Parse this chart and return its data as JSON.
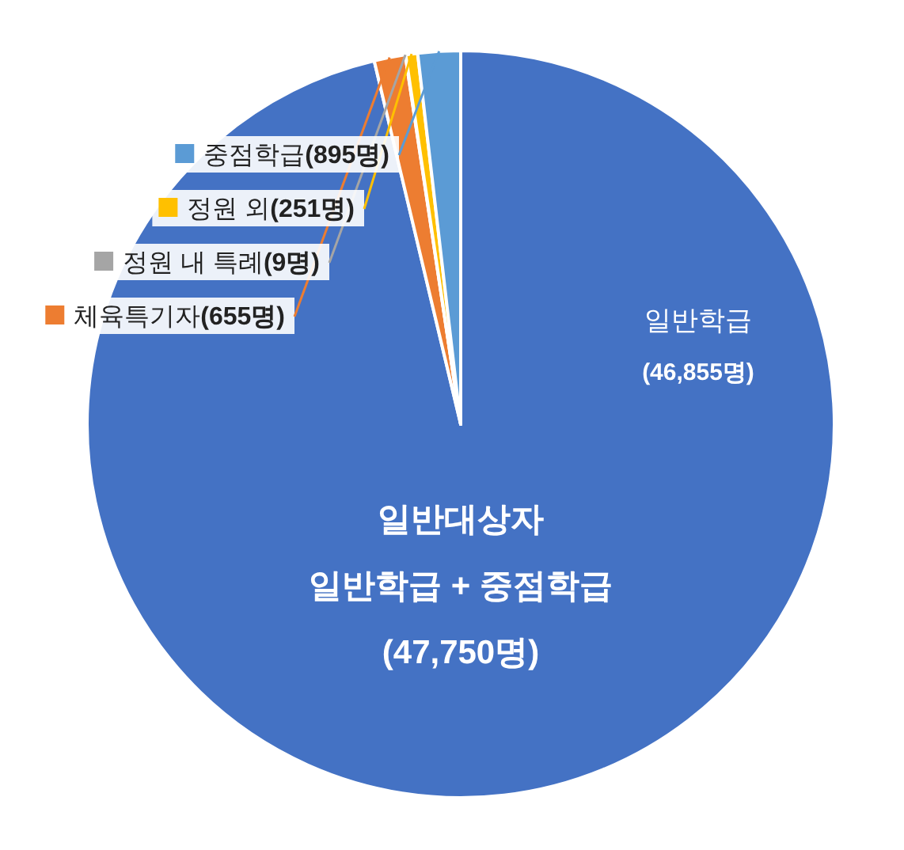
{
  "chart_data": {
    "type": "pie",
    "categories": [
      "일반학급",
      "체육특기자",
      "정원 내 특례",
      "정원 외",
      "중점학급"
    ],
    "values": [
      46855,
      655,
      9,
      251,
      895
    ],
    "value_labels": [
      "(46,855명)",
      "(655명)",
      "(9명)",
      "(251명)",
      "(895명)"
    ],
    "legend": "top left",
    "colors": [
      "#4472c4",
      "#ed7d31",
      "#a5a5a5",
      "#ffc000",
      "#5b9bd5"
    ],
    "annotations": [
      "일반대상자\n일반학급 + 중점학급\n(47,750명)"
    ]
  }
}
